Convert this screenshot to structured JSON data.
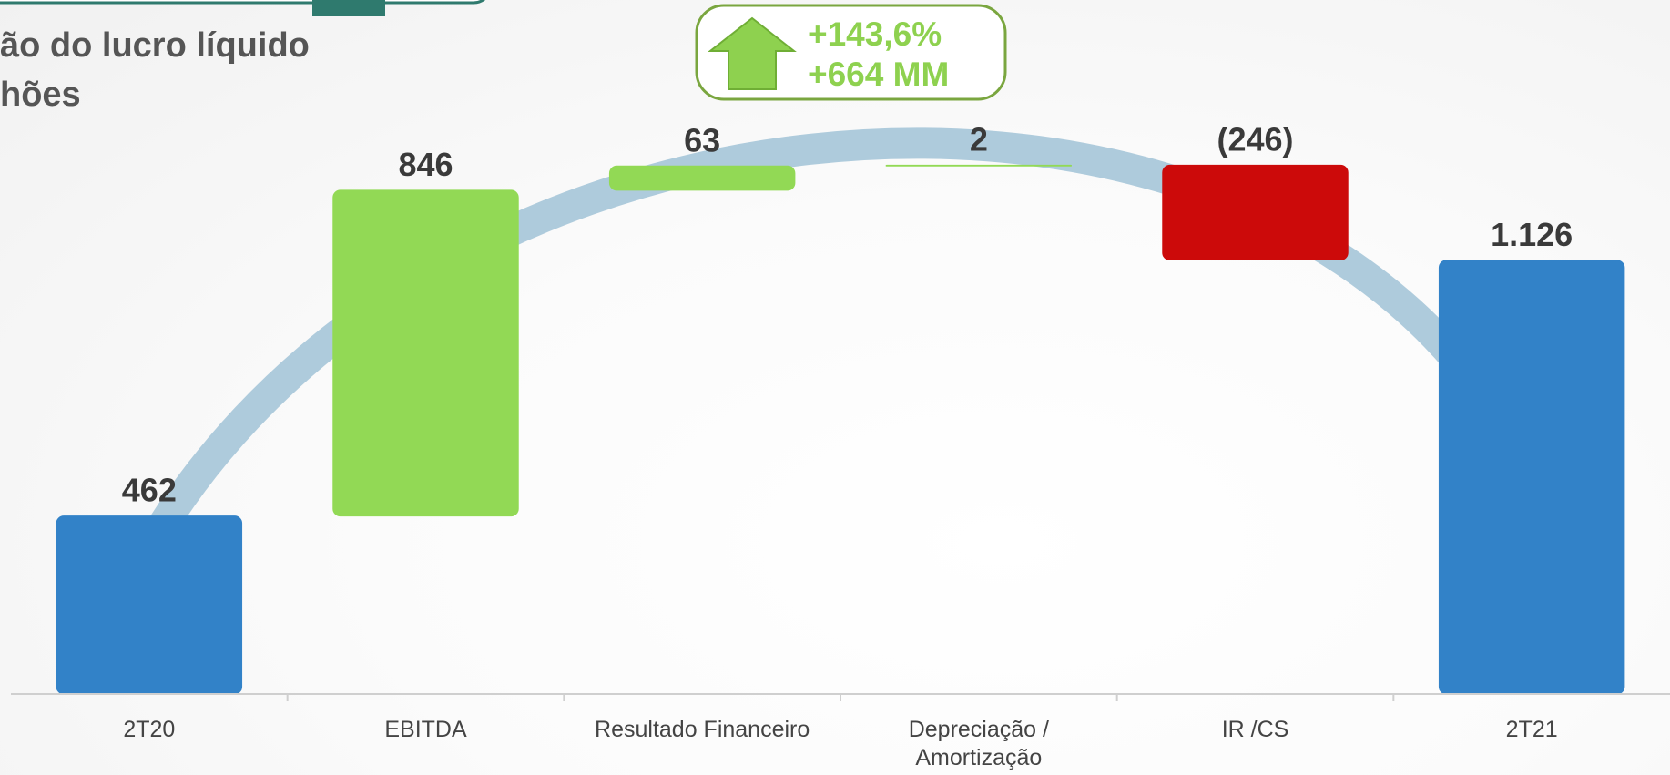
{
  "chart_data": {
    "type": "waterfall",
    "title_lines": [
      "ão do lucro líquido",
      "hões"
    ],
    "annotations": [
      "+143,6%",
      "+664 MM"
    ],
    "categories": [
      "2T20",
      "EBITDA",
      "Resultado Financeiro",
      "Depreciação / Amortização",
      "IR /CS",
      "2T21"
    ],
    "measure": [
      "absolute",
      "relative",
      "relative",
      "relative",
      "relative",
      "total"
    ],
    "values": [
      462,
      846,
      63,
      2,
      -246,
      1126
    ],
    "value_labels": [
      "462",
      "846",
      "63",
      "2",
      "(246)",
      "1.126"
    ],
    "colors": [
      "#3282c8",
      "#92d955",
      "#92d955",
      "#92d955",
      "#cc0a0a",
      "#3282c8"
    ],
    "ylim": [
      0,
      1400
    ]
  }
}
